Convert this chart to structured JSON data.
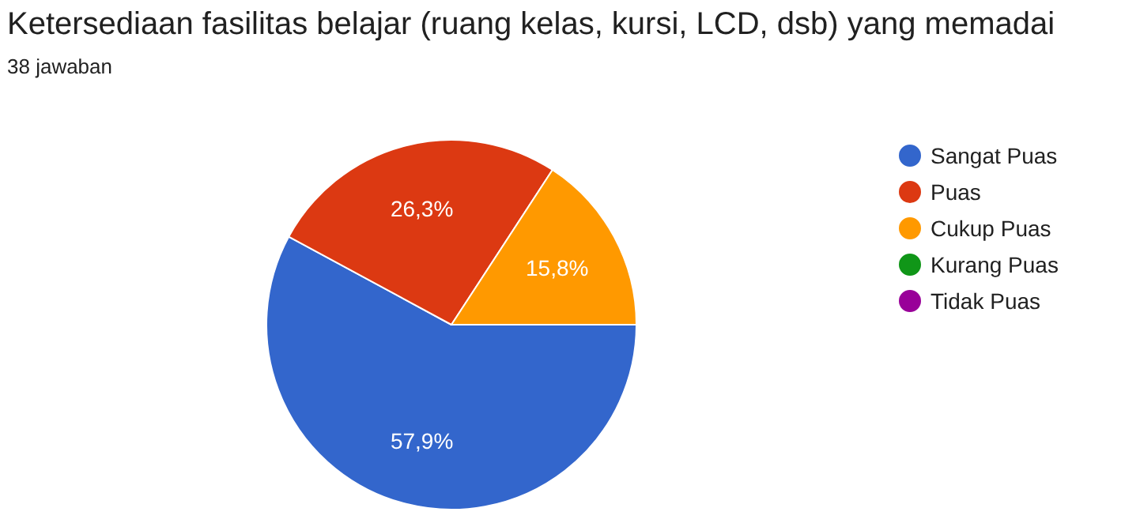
{
  "chart_data": {
    "type": "pie",
    "title": "Ketersediaan fasilitas belajar (ruang kelas, kursi, LCD, dsb) yang memadai",
    "subtitle": "38 jawaban",
    "categories": [
      "Sangat Puas",
      "Puas",
      "Cukup Puas",
      "Kurang Puas",
      "Tidak Puas"
    ],
    "values": [
      57.9,
      26.3,
      15.8,
      0,
      0
    ],
    "colors": [
      "#3366cc",
      "#dc3912",
      "#ff9900",
      "#109618",
      "#990099"
    ],
    "value_labels": [
      "57,9%",
      "26,3%",
      "15,8%",
      null,
      null
    ],
    "legend": "right"
  }
}
